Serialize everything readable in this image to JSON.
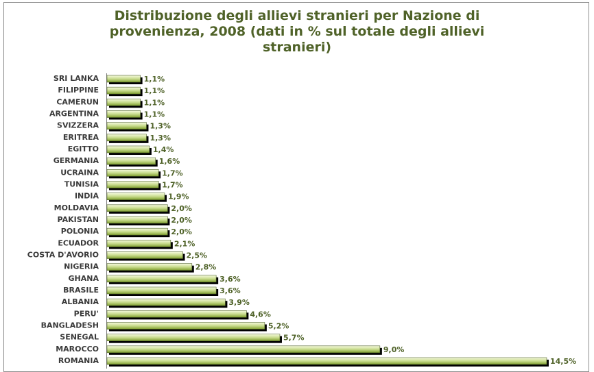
{
  "chart_data": {
    "type": "bar",
    "orientation": "horizontal",
    "title": "Distribuzione degli allievi stranieri per Nazione di provenienza, 2008 (dati in % sul totale degli allievi stranieri)",
    "categories": [
      "SRI LANKA",
      "FILIPPINE",
      "CAMERUN",
      "ARGENTINA",
      "SVIZZERA",
      "ERITREA",
      "EGITTO",
      "GERMANIA",
      "UCRAINA",
      "TUNISIA",
      "INDIA",
      "MOLDAVIA",
      "PAKISTAN",
      "POLONIA",
      "ECUADOR",
      "COSTA D'AVORIO",
      "NIGERIA",
      "GHANA",
      "BRASILE",
      "ALBANIA",
      "PERU'",
      "BANGLADESH",
      "SENEGAL",
      "MAROCCO",
      "ROMANIA"
    ],
    "values": [
      1.1,
      1.1,
      1.1,
      1.1,
      1.3,
      1.3,
      1.4,
      1.6,
      1.7,
      1.7,
      1.9,
      2.0,
      2.0,
      2.0,
      2.1,
      2.5,
      2.8,
      3.6,
      3.6,
      3.9,
      4.6,
      5.2,
      5.7,
      9.0,
      14.5
    ],
    "value_labels": [
      "1,1%",
      "1,1%",
      "1,1%",
      "1,1%",
      "1,3%",
      "1,3%",
      "1,4%",
      "1,6%",
      "1,7%",
      "1,7%",
      "1,9%",
      "2,0%",
      "2,0%",
      "2,0%",
      "2,1%",
      "2,5%",
      "2,8%",
      "3,6%",
      "3,6%",
      "3,9%",
      "4,6%",
      "5,2%",
      "5,7%",
      "9,0%",
      "14,5%"
    ],
    "color": "#9bbb59"
  }
}
